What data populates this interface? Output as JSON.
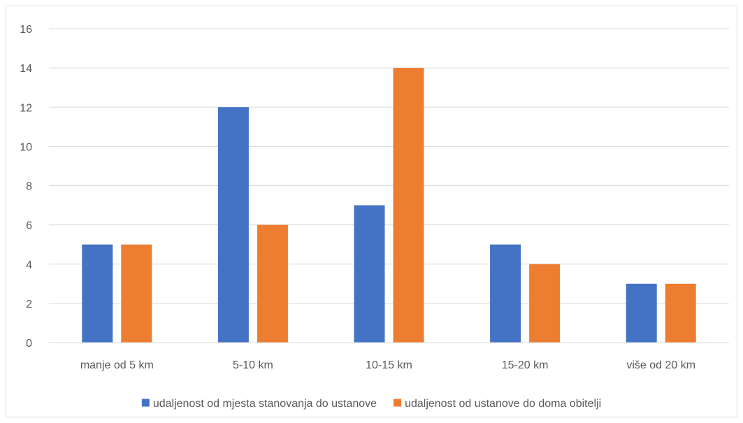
{
  "chart_data": {
    "type": "bar",
    "title": "",
    "xlabel": "",
    "ylabel": "",
    "ylim": [
      0,
      16
    ],
    "yticks": [
      0,
      2,
      4,
      6,
      8,
      10,
      12,
      14,
      16
    ],
    "grid": true,
    "legend_position": "bottom",
    "categories": [
      "manje od 5 km",
      "5-10 km",
      "10-15 km",
      "15-20 km",
      "više od 20 km"
    ],
    "series": [
      {
        "name": "udaljenost od mjesta stanovanja do ustanove",
        "color": "#4472C4",
        "values": [
          5,
          12,
          7,
          5,
          3
        ]
      },
      {
        "name": "udaljenost od ustanove do doma obitelji",
        "color": "#ED7D31",
        "values": [
          5,
          6,
          14,
          4,
          3
        ]
      }
    ]
  }
}
